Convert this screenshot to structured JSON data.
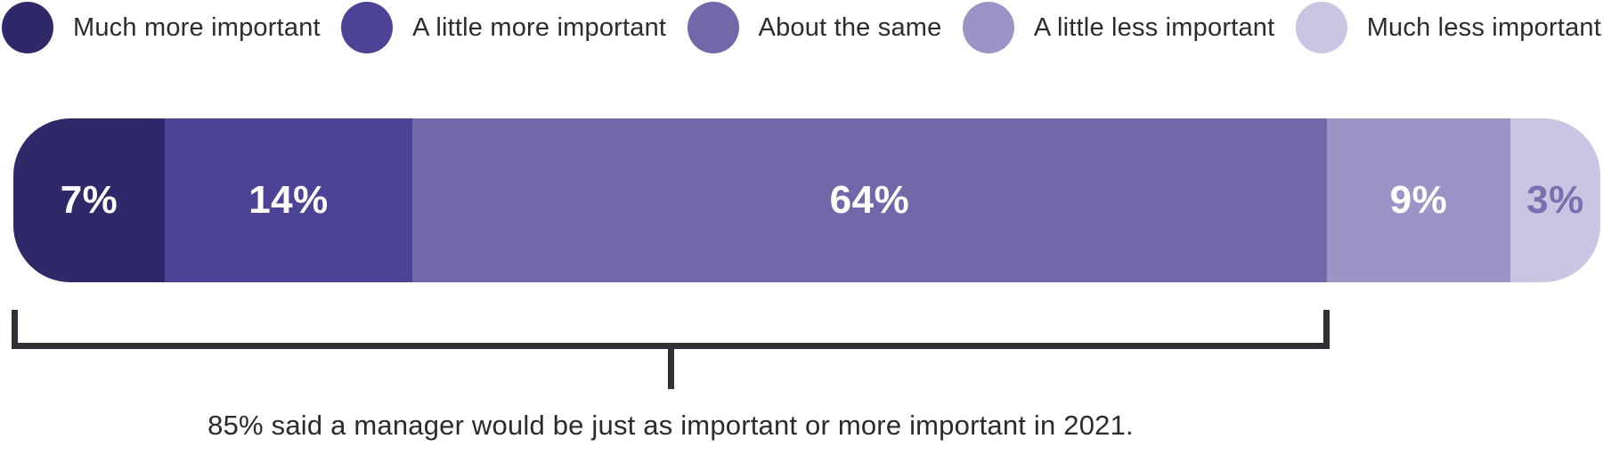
{
  "chart_data": {
    "type": "bar",
    "variant": "horizontal_stacked",
    "categories": [
      "Much more important",
      "A little more important",
      "About the same",
      "A little less important",
      "Much less important"
    ],
    "values": [
      7,
      14,
      64,
      9,
      3
    ],
    "unit": "%",
    "legend_position": "top",
    "segments": [
      {
        "label": "Much more important",
        "value": 7,
        "display": "7%",
        "color": "#2f296a",
        "text_color": "#ffffff",
        "width_pct": 9.54
      },
      {
        "label": "A little more important",
        "value": 14,
        "display": "14%",
        "color": "#4c4296",
        "text_color": "#ffffff",
        "width_pct": 15.6
      },
      {
        "label": "About the same",
        "value": 64,
        "display": "64%",
        "color": "#7268a9",
        "text_color": "#ffffff",
        "width_pct": 57.63
      },
      {
        "label": "A little less important",
        "value": 9,
        "display": "9%",
        "color": "#9c94c6",
        "text_color": "#ffffff",
        "width_pct": 11.56
      },
      {
        "label": "Much less important",
        "value": 3,
        "display": "3%",
        "color": "#c9c5e2",
        "text_color": "#7b70af",
        "width_pct": 5.67
      }
    ],
    "annotation": {
      "text": "85% said a manager would be just as important or more important in 2021.",
      "total": "85%",
      "spans_categories": [
        "Much more important",
        "A little more important",
        "About the same"
      ]
    }
  },
  "legend": {
    "items": [
      {
        "label": "Much more important",
        "color": "#2f296a"
      },
      {
        "label": "A little more important",
        "color": "#4c4296"
      },
      {
        "label": "About the same",
        "color": "#7268a9"
      },
      {
        "label": "A little less important",
        "color": "#9c94c6"
      },
      {
        "label": "Much less important",
        "color": "#c9c5e2"
      }
    ]
  },
  "caption": "85% said a manager would be just as important or more important in 2021.",
  "colors": {
    "bracket": "#303137",
    "caption_text": "#2b2b2b",
    "legend_text": "#2c2c2c"
  }
}
